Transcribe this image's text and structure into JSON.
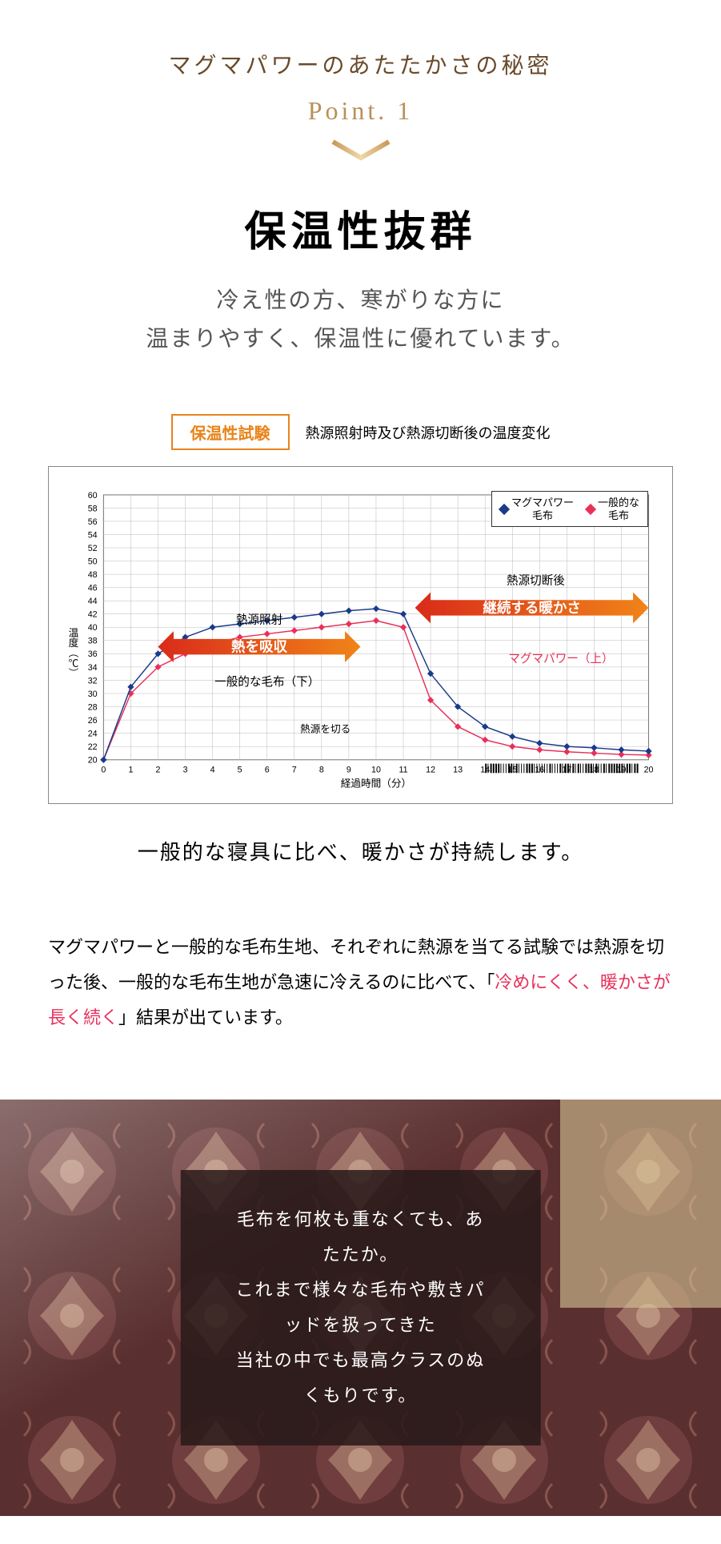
{
  "header": {
    "subtitle": "マグマパワーのあたたかさの秘密",
    "point_label": "Point. 1",
    "main_title": "保温性抜群",
    "sub_desc_line1": "冷え性の方、寒がりな方に",
    "sub_desc_line2": "温まりやすく、保温性に優れています。"
  },
  "colors": {
    "accent_brown": "#6a4a2a",
    "point_gold": "#b8905a",
    "orange_border": "#e8841a",
    "arrow_grad_start": "#d92b1a",
    "arrow_grad_end": "#f08418",
    "magma_line": "#1a3a8a",
    "general_line": "#e8305a",
    "grid": "#b8b8b8",
    "highlight_red": "#e8305a"
  },
  "chart": {
    "type": "line",
    "test_badge": "保温性試験",
    "title": "熱源照射時及び熱源切断後の温度変化",
    "y_label": "温度（℃）",
    "x_label": "経過時間（分）",
    "ylim": [
      20,
      60
    ],
    "ytick_step": 2,
    "xlim": [
      0,
      20
    ],
    "xtick_step": 1,
    "legend": {
      "magma": "マグマパワー\n毛布",
      "general": "一般的な\n毛布"
    },
    "annotations": {
      "heat_source": "熱源照射",
      "absorb_heat": "熱を吸収",
      "general_blanket_lower": "一般的な毛布（下）",
      "heat_cut_off": "熱源を切る",
      "after_cut": "熱源切断後",
      "continuing_warmth": "継続する暖かさ",
      "magma_upper": "マグマパワー（上）"
    },
    "series_magma": {
      "color": "#1a3a8a",
      "x": [
        0,
        1,
        2,
        3,
        4,
        5,
        6,
        7,
        8,
        9,
        10,
        11,
        12,
        13,
        14,
        15,
        16,
        17,
        18,
        19,
        20
      ],
      "y": [
        20,
        31,
        36,
        38.5,
        40,
        40.5,
        41,
        41.5,
        42,
        42.5,
        42.8,
        42,
        33,
        28,
        25,
        23.5,
        22.5,
        22,
        21.8,
        21.5,
        21.3
      ]
    },
    "series_general": {
      "color": "#e8305a",
      "x": [
        0,
        1,
        2,
        3,
        4,
        5,
        6,
        7,
        8,
        9,
        10,
        11,
        12,
        13,
        14,
        15,
        16,
        17,
        18,
        19,
        20
      ],
      "y": [
        20,
        30,
        34,
        36,
        37.5,
        38.5,
        39,
        39.5,
        40,
        40.5,
        41,
        40,
        29,
        25,
        23,
        22,
        21.5,
        21.2,
        21,
        20.8,
        20.7
      ]
    }
  },
  "chart_caption": "一般的な寝具に比べ、暖かさが持続します。",
  "body_text": {
    "p1_a": "マグマパワーと一般的な毛布生地、それぞれに熱源を当てる試験では熱源を切った後、一般的な毛布生地が急速に冷えるのに比べて、「",
    "p1_highlight": "冷めにくく、暖かさが長く続く",
    "p1_b": "」結果が出ています。"
  },
  "overlay": {
    "line1": "毛布を何枚も重なくても、あたたか。",
    "line2": "これまで様々な毛布や敷きパッドを扱ってきた",
    "line3": "当社の中でも最高クラスのぬくもりです。"
  }
}
